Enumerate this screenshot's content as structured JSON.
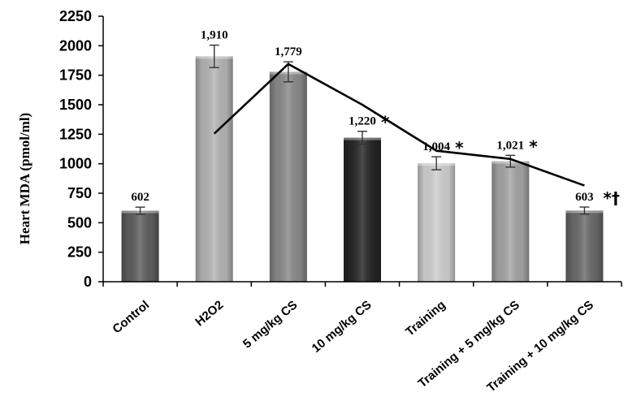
{
  "chart_data": {
    "type": "bar",
    "title": "",
    "ylabel": "Heart MDA (pmol/ml)",
    "xlabel": "",
    "ylim": [
      0,
      2250
    ],
    "yticks": [
      0,
      250,
      500,
      750,
      1000,
      1250,
      1500,
      1750,
      2000,
      2250
    ],
    "ytick_labels": [
      "0",
      "250",
      "500",
      "750",
      "1000",
      "1250",
      "1500",
      "1750",
      "2000",
      "2250"
    ],
    "grid": false,
    "legend": "none",
    "categories": [
      "Control",
      "H2O2",
      "5 mg/kg CS",
      "10 mg/kg CS",
      "Training",
      "Training + 5 mg/kg CS",
      "Training + 10 mg/kg CS"
    ],
    "values": [
      602,
      1910,
      1779,
      1220,
      1004,
      1021,
      603
    ],
    "errors": [
      30,
      95,
      85,
      55,
      55,
      50,
      30
    ],
    "data_labels": [
      "602",
      "1,910",
      "1,779",
      "1,220",
      "1,004",
      "1,021",
      "603"
    ],
    "significance_marks": [
      "",
      "",
      "",
      "*",
      "*",
      "*",
      "*†"
    ],
    "bar_colors": [
      "#5e5e5e",
      "#b4b4b4",
      "#8a8a8a",
      "#262626",
      "#cfcfcf",
      "#a4a4a4",
      "#6a6a6a"
    ],
    "trend_line": {
      "categories": [
        "H2O2",
        "5 mg/kg CS",
        "10 mg/kg CS",
        "Training",
        "Training + 5 mg/kg CS",
        "Training + 10 mg/kg CS"
      ],
      "values": [
        1255,
        1845,
        1500,
        1110,
        1040,
        815
      ],
      "color": "#000000"
    }
  }
}
